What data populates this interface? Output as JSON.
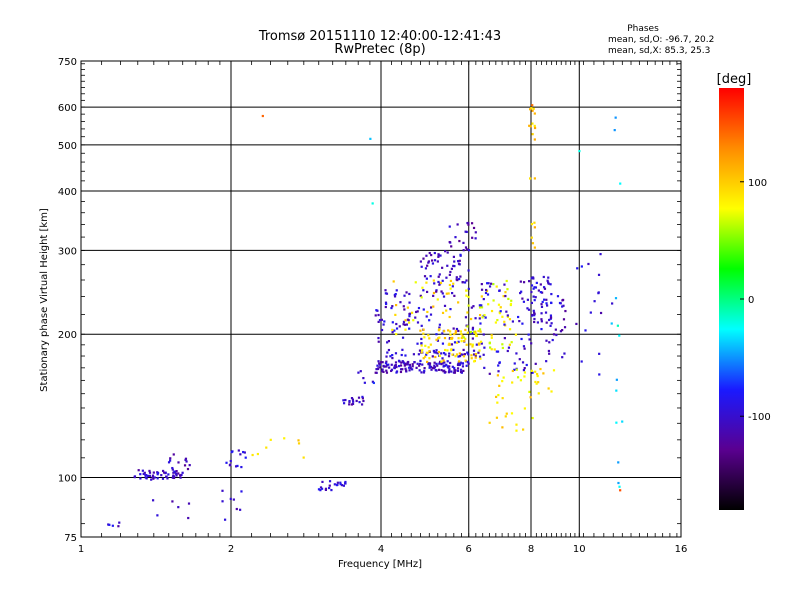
{
  "chart_data": {
    "type": "scatter",
    "title": "Tromsø 20151110 12:40:00-12:41:43",
    "subtitle": "RwPretec (8p)",
    "xlabel": "Frequency [MHz]",
    "ylabel": "Stationary phase Virtual Height [km]",
    "x_scale": "log",
    "y_scale": "log",
    "xlim": [
      1,
      16
    ],
    "ylim": [
      75,
      750
    ],
    "x_ticks": [
      1,
      2,
      4,
      6,
      8,
      10,
      16
    ],
    "y_ticks": [
      75,
      100,
      200,
      300,
      400,
      500,
      600,
      750
    ],
    "grid": true,
    "phase_box": {
      "heading": "Phases",
      "line_o": "mean, sd,O: -96.7, 20.2",
      "line_x": "mean, sd,X:  85.3, 25.3"
    },
    "colorbar": {
      "label": "[deg]",
      "range": [
        -180,
        180
      ],
      "ticks": [
        100,
        0,
        -100
      ],
      "colors": [
        "#000000",
        "#5a0090",
        "#1a1aff",
        "#00ffff",
        "#00ff00",
        "#ffff00",
        "#ff8c00",
        "#ff0000"
      ]
    },
    "clusters": [
      {
        "x": [
          1.28,
          1.6
        ],
        "y": [
          99,
          104
        ],
        "n": 55,
        "phase": -105
      },
      {
        "x": [
          1.45,
          1.7
        ],
        "y": [
          104,
          112
        ],
        "n": 12,
        "phase": -110
      },
      {
        "x": [
          1.1,
          1.2
        ],
        "y": [
          78,
          82
        ],
        "n": 5,
        "phase": -100
      },
      {
        "x": [
          1.3,
          1.65
        ],
        "y": [
          82,
          90
        ],
        "n": 6,
        "phase": -110
      },
      {
        "x": [
          1.95,
          2.15
        ],
        "y": [
          105,
          115
        ],
        "n": 14,
        "phase": -95
      },
      {
        "x": [
          1.9,
          2.1
        ],
        "y": [
          78,
          98
        ],
        "n": 8,
        "phase": -100
      },
      {
        "x": [
          3.0,
          3.4
        ],
        "y": [
          94,
          99
        ],
        "n": 22,
        "phase": -100
      },
      {
        "x": [
          2.2,
          3.0
        ],
        "y": [
          110,
          122
        ],
        "n": 8,
        "phase": 100
      },
      {
        "x": [
          3.35,
          3.7
        ],
        "y": [
          142,
          148
        ],
        "n": 18,
        "phase": -110
      },
      {
        "x": [
          3.6,
          3.9
        ],
        "y": [
          155,
          170
        ],
        "n": 6,
        "phase": -90
      },
      {
        "x": [
          3.9,
          6.0
        ],
        "y": [
          166,
          176
        ],
        "n": 150,
        "phase": -105
      },
      {
        "x": [
          4.0,
          6.4
        ],
        "y": [
          178,
          186
        ],
        "n": 45,
        "phase": -100
      },
      {
        "x": [
          3.9,
          4.6
        ],
        "y": [
          190,
          250
        ],
        "n": 45,
        "phase": -100
      },
      {
        "x": [
          4.5,
          6.5
        ],
        "y": [
          190,
          230
        ],
        "n": 55,
        "phase": -100
      },
      {
        "x": [
          4.8,
          6.0
        ],
        "y": [
          240,
          300
        ],
        "n": 70,
        "phase": -105
      },
      {
        "x": [
          5.4,
          6.2
        ],
        "y": [
          300,
          345
        ],
        "n": 22,
        "phase": -110
      },
      {
        "x": [
          4.8,
          6.4
        ],
        "y": [
          175,
          205
        ],
        "n": 80,
        "phase": 95
      },
      {
        "x": [
          5.8,
          7.5
        ],
        "y": [
          185,
          260
        ],
        "n": 60,
        "phase": 80
      },
      {
        "x": [
          4.2,
          6.0
        ],
        "y": [
          200,
          260
        ],
        "n": 35,
        "phase": 90
      },
      {
        "x": [
          6.3,
          8.2
        ],
        "y": [
          165,
          260
        ],
        "n": 65,
        "phase": -100
      },
      {
        "x": [
          7.8,
          8.8
        ],
        "y": [
          205,
          265
        ],
        "n": 50,
        "phase": -100
      },
      {
        "x": [
          8.3,
          9.4
        ],
        "y": [
          170,
          245
        ],
        "n": 30,
        "phase": -105
      },
      {
        "x": [
          6.8,
          9.0
        ],
        "y": [
          150,
          170
        ],
        "n": 25,
        "phase": 85
      },
      {
        "x": [
          6.6,
          8.2
        ],
        "y": [
          125,
          150
        ],
        "n": 16,
        "phase": 90
      },
      {
        "x": [
          7.9,
          8.15
        ],
        "y": [
          280,
          610
        ],
        "n": 20,
        "phase": 105
      },
      {
        "x": [
          9.6,
          11.8
        ],
        "y": [
          160,
          300
        ],
        "n": 16,
        "phase": -100
      },
      {
        "x": [
          11.6,
          12.2
        ],
        "y": [
          95,
          620
        ],
        "n": 14,
        "phase": -30
      },
      {
        "x": [
          2.3,
          2.4
        ],
        "y": [
          570,
          580
        ],
        "n": 1,
        "phase": 150
      },
      {
        "x": [
          3.8,
          3.9
        ],
        "y": [
          360,
          590
        ],
        "n": 2,
        "phase": -30
      },
      {
        "x": [
          8.0,
          8.1
        ],
        "y": [
          600,
          610
        ],
        "n": 1,
        "phase": 160
      },
      {
        "x": [
          9.9,
          10.1
        ],
        "y": [
          480,
          490
        ],
        "n": 1,
        "phase": -20
      },
      {
        "x": [
          11.9,
          12.1
        ],
        "y": [
          94,
          96
        ],
        "n": 1,
        "phase": 150
      }
    ]
  }
}
